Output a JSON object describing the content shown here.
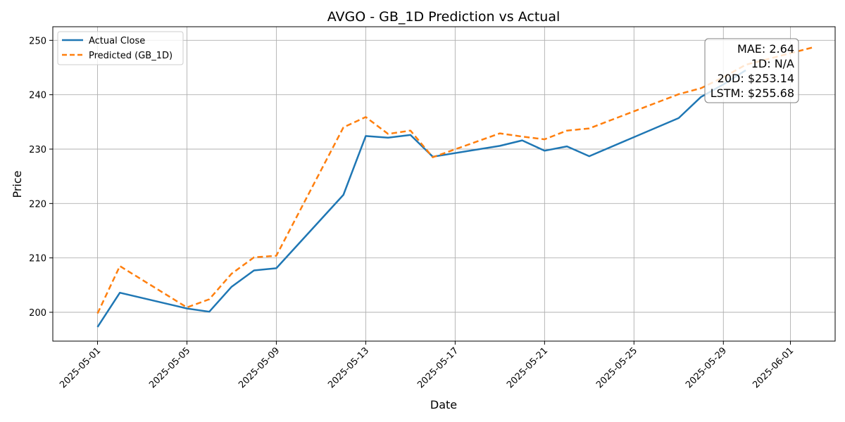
{
  "chart_data": {
    "type": "line",
    "title": "AVGO - GB_1D Prediction vs Actual",
    "xlabel": "Date",
    "ylabel": "Price",
    "grid": true,
    "legend_position": "top-left",
    "xlim": [
      "2025-04-29",
      "2025-06-03"
    ],
    "ylim": [
      194.7,
      252.5
    ],
    "x_ticks": [
      "2025-05-01",
      "2025-05-05",
      "2025-05-09",
      "2025-05-13",
      "2025-05-17",
      "2025-05-21",
      "2025-05-25",
      "2025-05-29",
      "2025-06-01"
    ],
    "y_ticks": [
      200,
      210,
      220,
      230,
      240,
      250
    ],
    "series": [
      {
        "name": "Actual Close",
        "color": "#1f77b4",
        "style": "solid",
        "x": [
          "2025-05-01",
          "2025-05-02",
          "2025-05-05",
          "2025-05-06",
          "2025-05-07",
          "2025-05-08",
          "2025-05-09",
          "2025-05-12",
          "2025-05-13",
          "2025-05-14",
          "2025-05-15",
          "2025-05-16",
          "2025-05-19",
          "2025-05-20",
          "2025-05-21",
          "2025-05-22",
          "2025-05-23",
          "2025-05-27",
          "2025-05-28",
          "2025-05-29",
          "2025-05-30"
        ],
        "values": [
          197.3,
          203.6,
          200.7,
          200.1,
          204.7,
          207.7,
          208.1,
          221.6,
          232.4,
          232.1,
          232.6,
          228.6,
          230.6,
          231.6,
          229.7,
          230.5,
          228.7,
          235.7,
          239.6,
          241.9,
          244.5
        ]
      },
      {
        "name": "Predicted (GB_1D)",
        "color": "#ff7f0e",
        "style": "dashed",
        "x": [
          "2025-05-01",
          "2025-05-02",
          "2025-05-05",
          "2025-05-06",
          "2025-05-07",
          "2025-05-08",
          "2025-05-09",
          "2025-05-12",
          "2025-05-13",
          "2025-05-14",
          "2025-05-15",
          "2025-05-16",
          "2025-05-19",
          "2025-05-20",
          "2025-05-21",
          "2025-05-22",
          "2025-05-23",
          "2025-05-27",
          "2025-05-28",
          "2025-05-29",
          "2025-05-30",
          "2025-06-02"
        ],
        "values": [
          199.8,
          208.5,
          200.9,
          202.4,
          207.1,
          210.1,
          210.4,
          234.0,
          235.9,
          232.8,
          233.4,
          228.5,
          232.9,
          232.3,
          231.8,
          233.4,
          233.8,
          240.1,
          241.2,
          243.2,
          245.5,
          248.7
        ]
      }
    ],
    "annotation": {
      "position": "top-right",
      "lines": [
        "MAE: 2.64",
        "1D: N/A",
        "20D: $253.14",
        "LSTM: $255.68"
      ]
    }
  }
}
